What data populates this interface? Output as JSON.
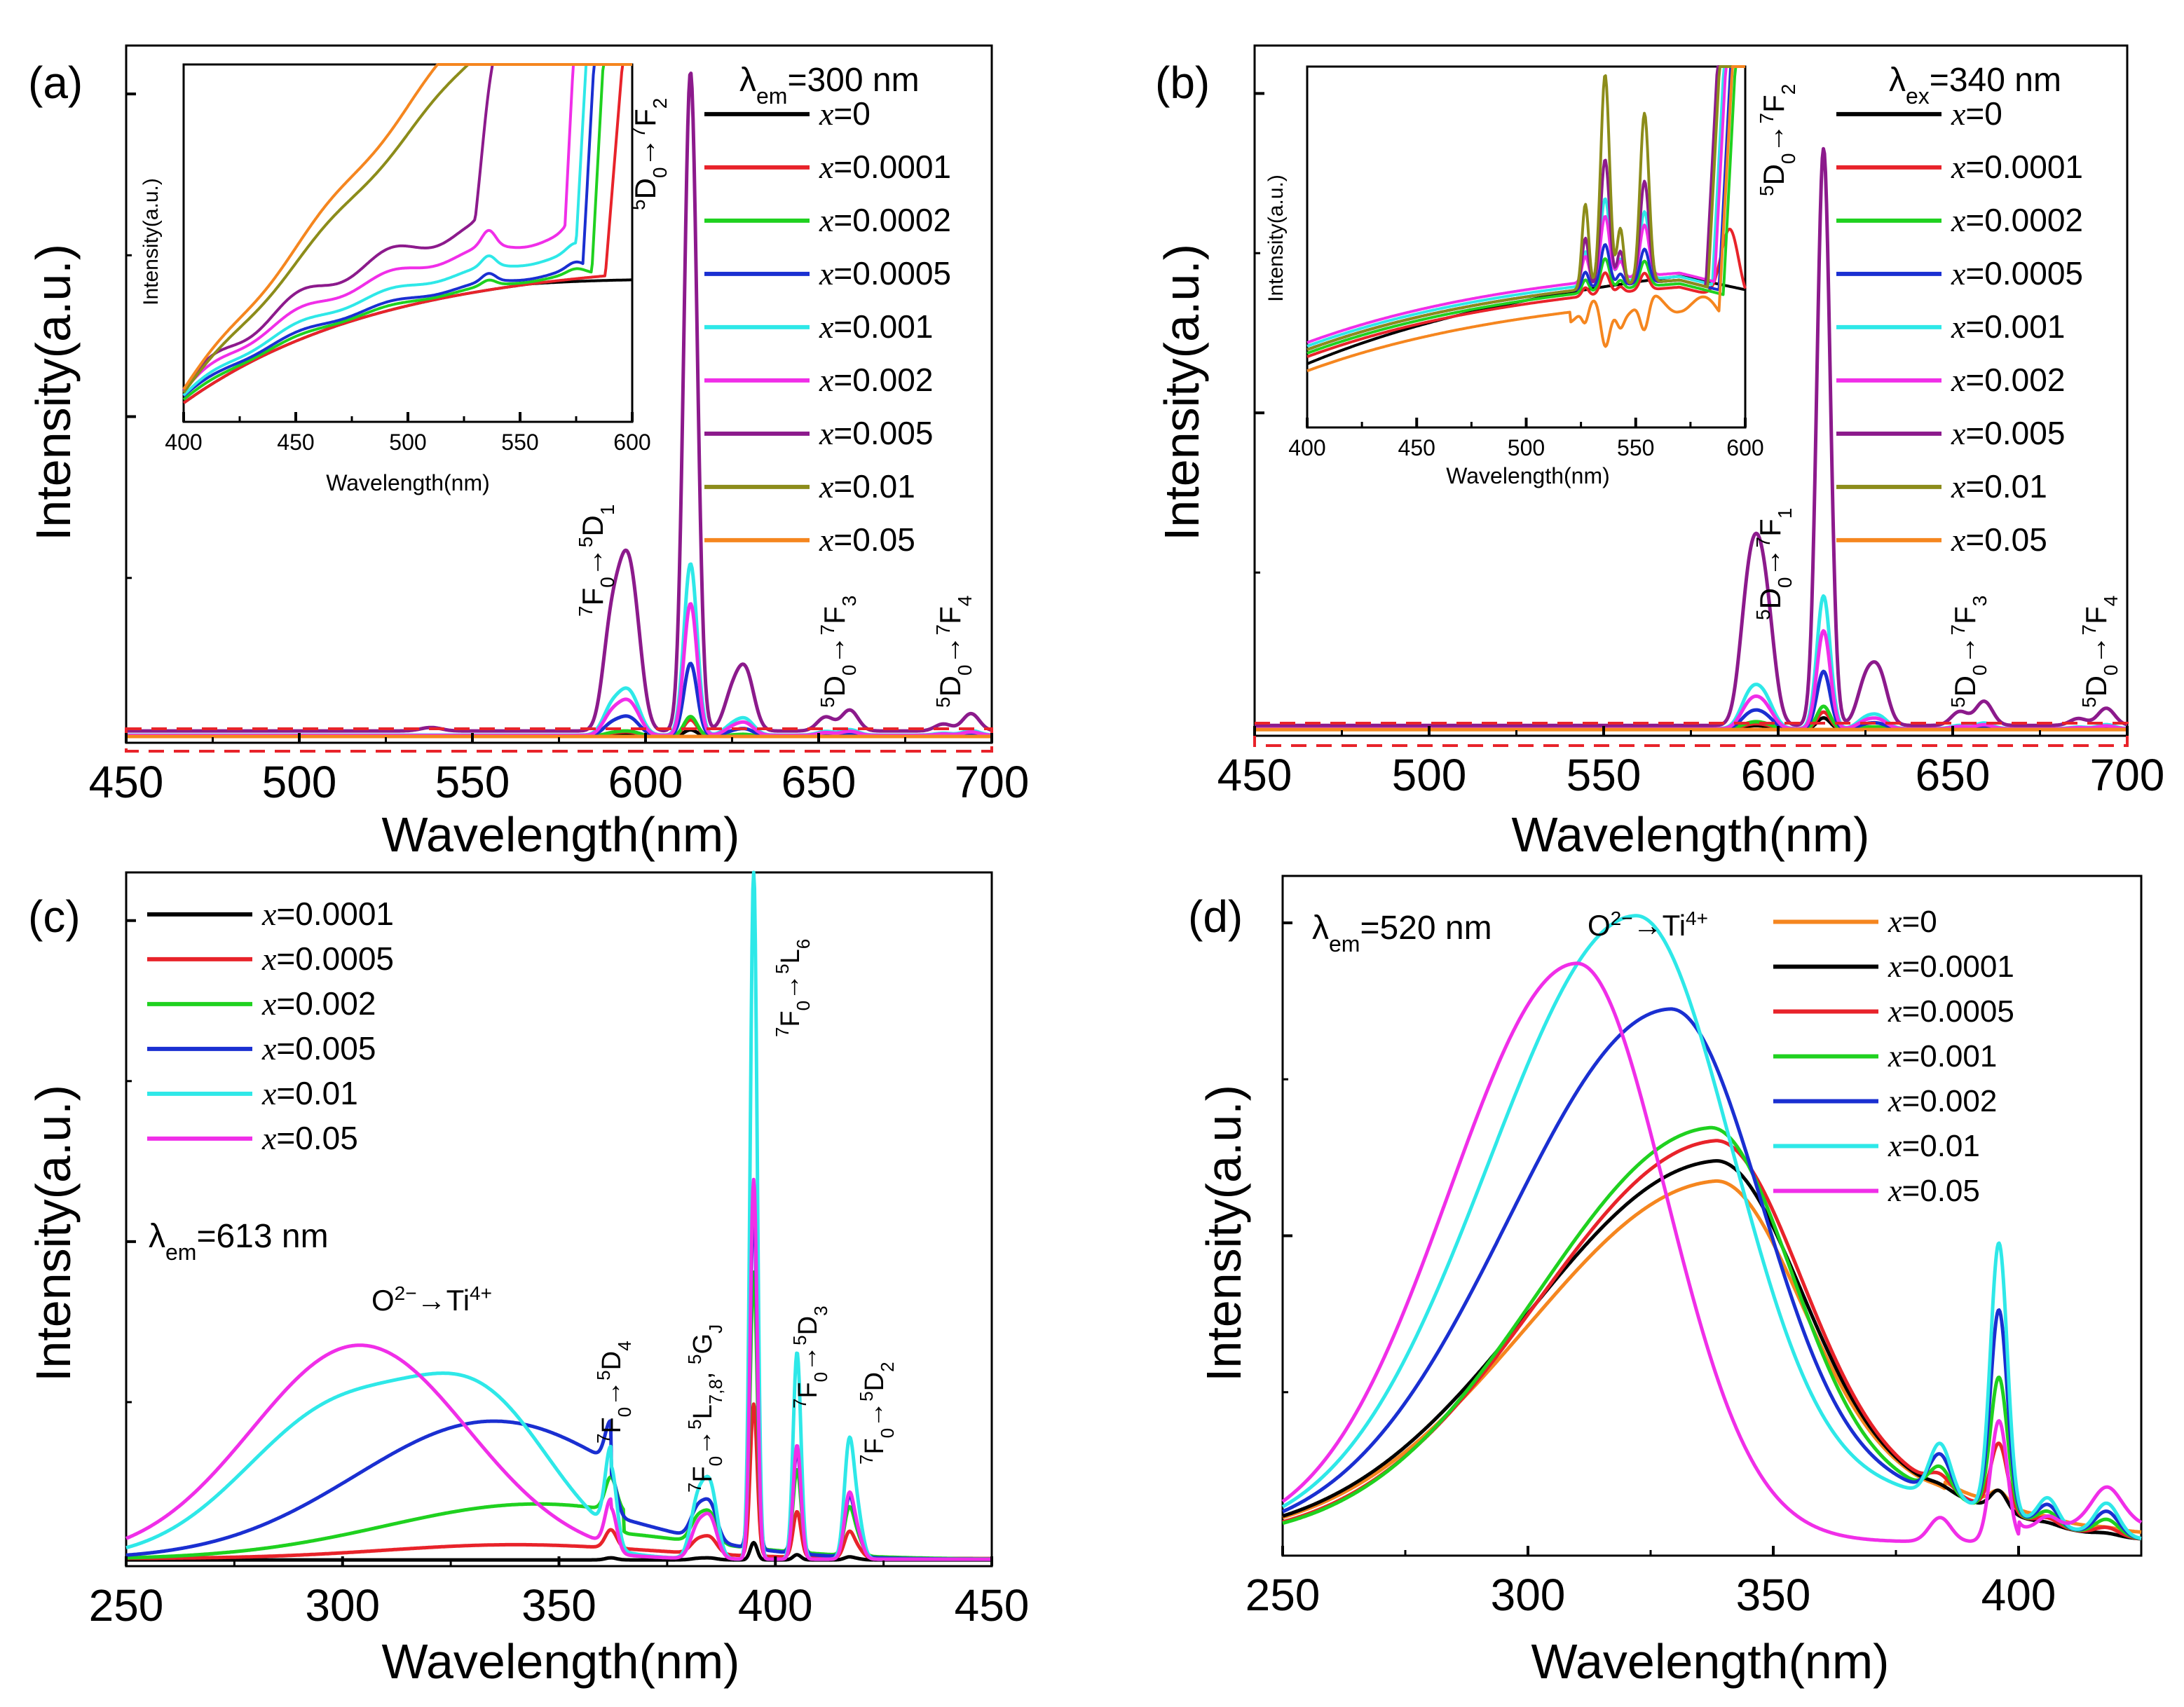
{
  "chart_data": [
    {
      "panel": "(a)",
      "type": "line",
      "xlabel": "Wavelength(nm)",
      "ylabel": "Intensity(a.u.)",
      "xlim": [
        450,
        700
      ],
      "xticks": [
        "450",
        "500",
        "550",
        "600",
        "650",
        "700"
      ],
      "ylim": [
        0,
        1
      ],
      "condition": "λem=300 nm",
      "legend": [
        "x=0",
        "x=0.0001",
        "x=0.0002",
        "x=0.0005",
        "x=0.001",
        "x=0.002",
        "x=0.005",
        "x=0.01",
        "x=0.05"
      ],
      "colors": [
        "#000000",
        "#e8232a",
        "#1fd11f",
        "#1a2fd1",
        "#2ee8e8",
        "#f02ee8",
        "#8c1a8c",
        "#8c8c1a",
        "#f5861f"
      ],
      "peaks_x": [
        590,
        594,
        597,
        613,
        625,
        629,
        652,
        659,
        686,
        694
      ],
      "peak_heights": [
        0.14,
        0.17,
        0.12,
        0.95,
        0.05,
        0.08,
        0.02,
        0.03,
        0.01,
        0.025
      ],
      "annotations": [
        "7F0→5D1",
        "5D0→7F2",
        "5D0→7F3",
        "5D0→7F4"
      ],
      "inset": {
        "xlabel": "Wavelength(nm)",
        "ylabel": "Intensity(a.u.)",
        "xlim": [
          400,
          600
        ],
        "xticks": [
          "400",
          "450",
          "500",
          "550",
          "600"
        ]
      }
    },
    {
      "panel": "(b)",
      "type": "line",
      "xlabel": "Wavelength(nm)",
      "ylabel": "Intensity(a.u.)",
      "xlim": [
        450,
        700
      ],
      "xticks": [
        "450",
        "500",
        "550",
        "600",
        "650",
        "700"
      ],
      "ylim": [
        0,
        1
      ],
      "condition": "λex=340 nm",
      "legend": [
        "x=0",
        "x=0.0001",
        "x=0.0002",
        "x=0.0005",
        "x=0.001",
        "x=0.002",
        "x=0.005",
        "x=0.01",
        "x=0.05"
      ],
      "colors": [
        "#000000",
        "#e8232a",
        "#1fd11f",
        "#1a2fd1",
        "#2ee8e8",
        "#f02ee8",
        "#8c1a8c",
        "#8c8c1a",
        "#f5861f"
      ],
      "annotations": [
        "5D0→7F2",
        "5D0→7F1",
        "5D0→7F3",
        "5D0→7F4"
      ],
      "inset": {
        "xlabel": "Wavelength(nm)",
        "ylabel": "Intensity(a.u.)",
        "xlim": [
          400,
          600
        ],
        "xticks": [
          "400",
          "450",
          "500",
          "550",
          "600"
        ]
      }
    },
    {
      "panel": "(c)",
      "type": "line",
      "xlabel": "Wavelength(nm)",
      "ylabel": "Intensity(a.u.)",
      "xlim": [
        250,
        450
      ],
      "xticks": [
        "250",
        "300",
        "350",
        "400",
        "450"
      ],
      "ylim": [
        0,
        1
      ],
      "condition": "λem=613 nm",
      "legend": [
        "x=0.0001",
        "x=0.0005",
        "x=0.002",
        "x=0.005",
        "x=0.01",
        "x=0.05"
      ],
      "colors": [
        "#000000",
        "#e8232a",
        "#1fd11f",
        "#1a2fd1",
        "#2ee8e8",
        "#f02ee8"
      ],
      "annotations": [
        "O2−→Ti4+",
        "7F0→5D4",
        "7F0→5L7,8, 5GJ",
        "7F0→5L6",
        "7F0→5D3",
        "7F0→5D2"
      ]
    },
    {
      "panel": "(d)",
      "type": "line",
      "xlabel": "Wavelength(nm)",
      "ylabel": "Intensity(a.u.)",
      "xlim": [
        250,
        425
      ],
      "xticks": [
        "250",
        "300",
        "350",
        "400"
      ],
      "ylim": [
        0,
        1
      ],
      "condition": "λem=520 nm",
      "legend": [
        "x=0",
        "x=0.0001",
        "x=0.0005",
        "x=0.001",
        "x=0.002",
        "x=0.01",
        "x=0.05"
      ],
      "colors": [
        "#f5861f",
        "#000000",
        "#e8232a",
        "#1fd11f",
        "#1a2fd1",
        "#2ee8e8",
        "#f02ee8"
      ],
      "annotations": [
        "O2−→Ti4+"
      ]
    }
  ]
}
